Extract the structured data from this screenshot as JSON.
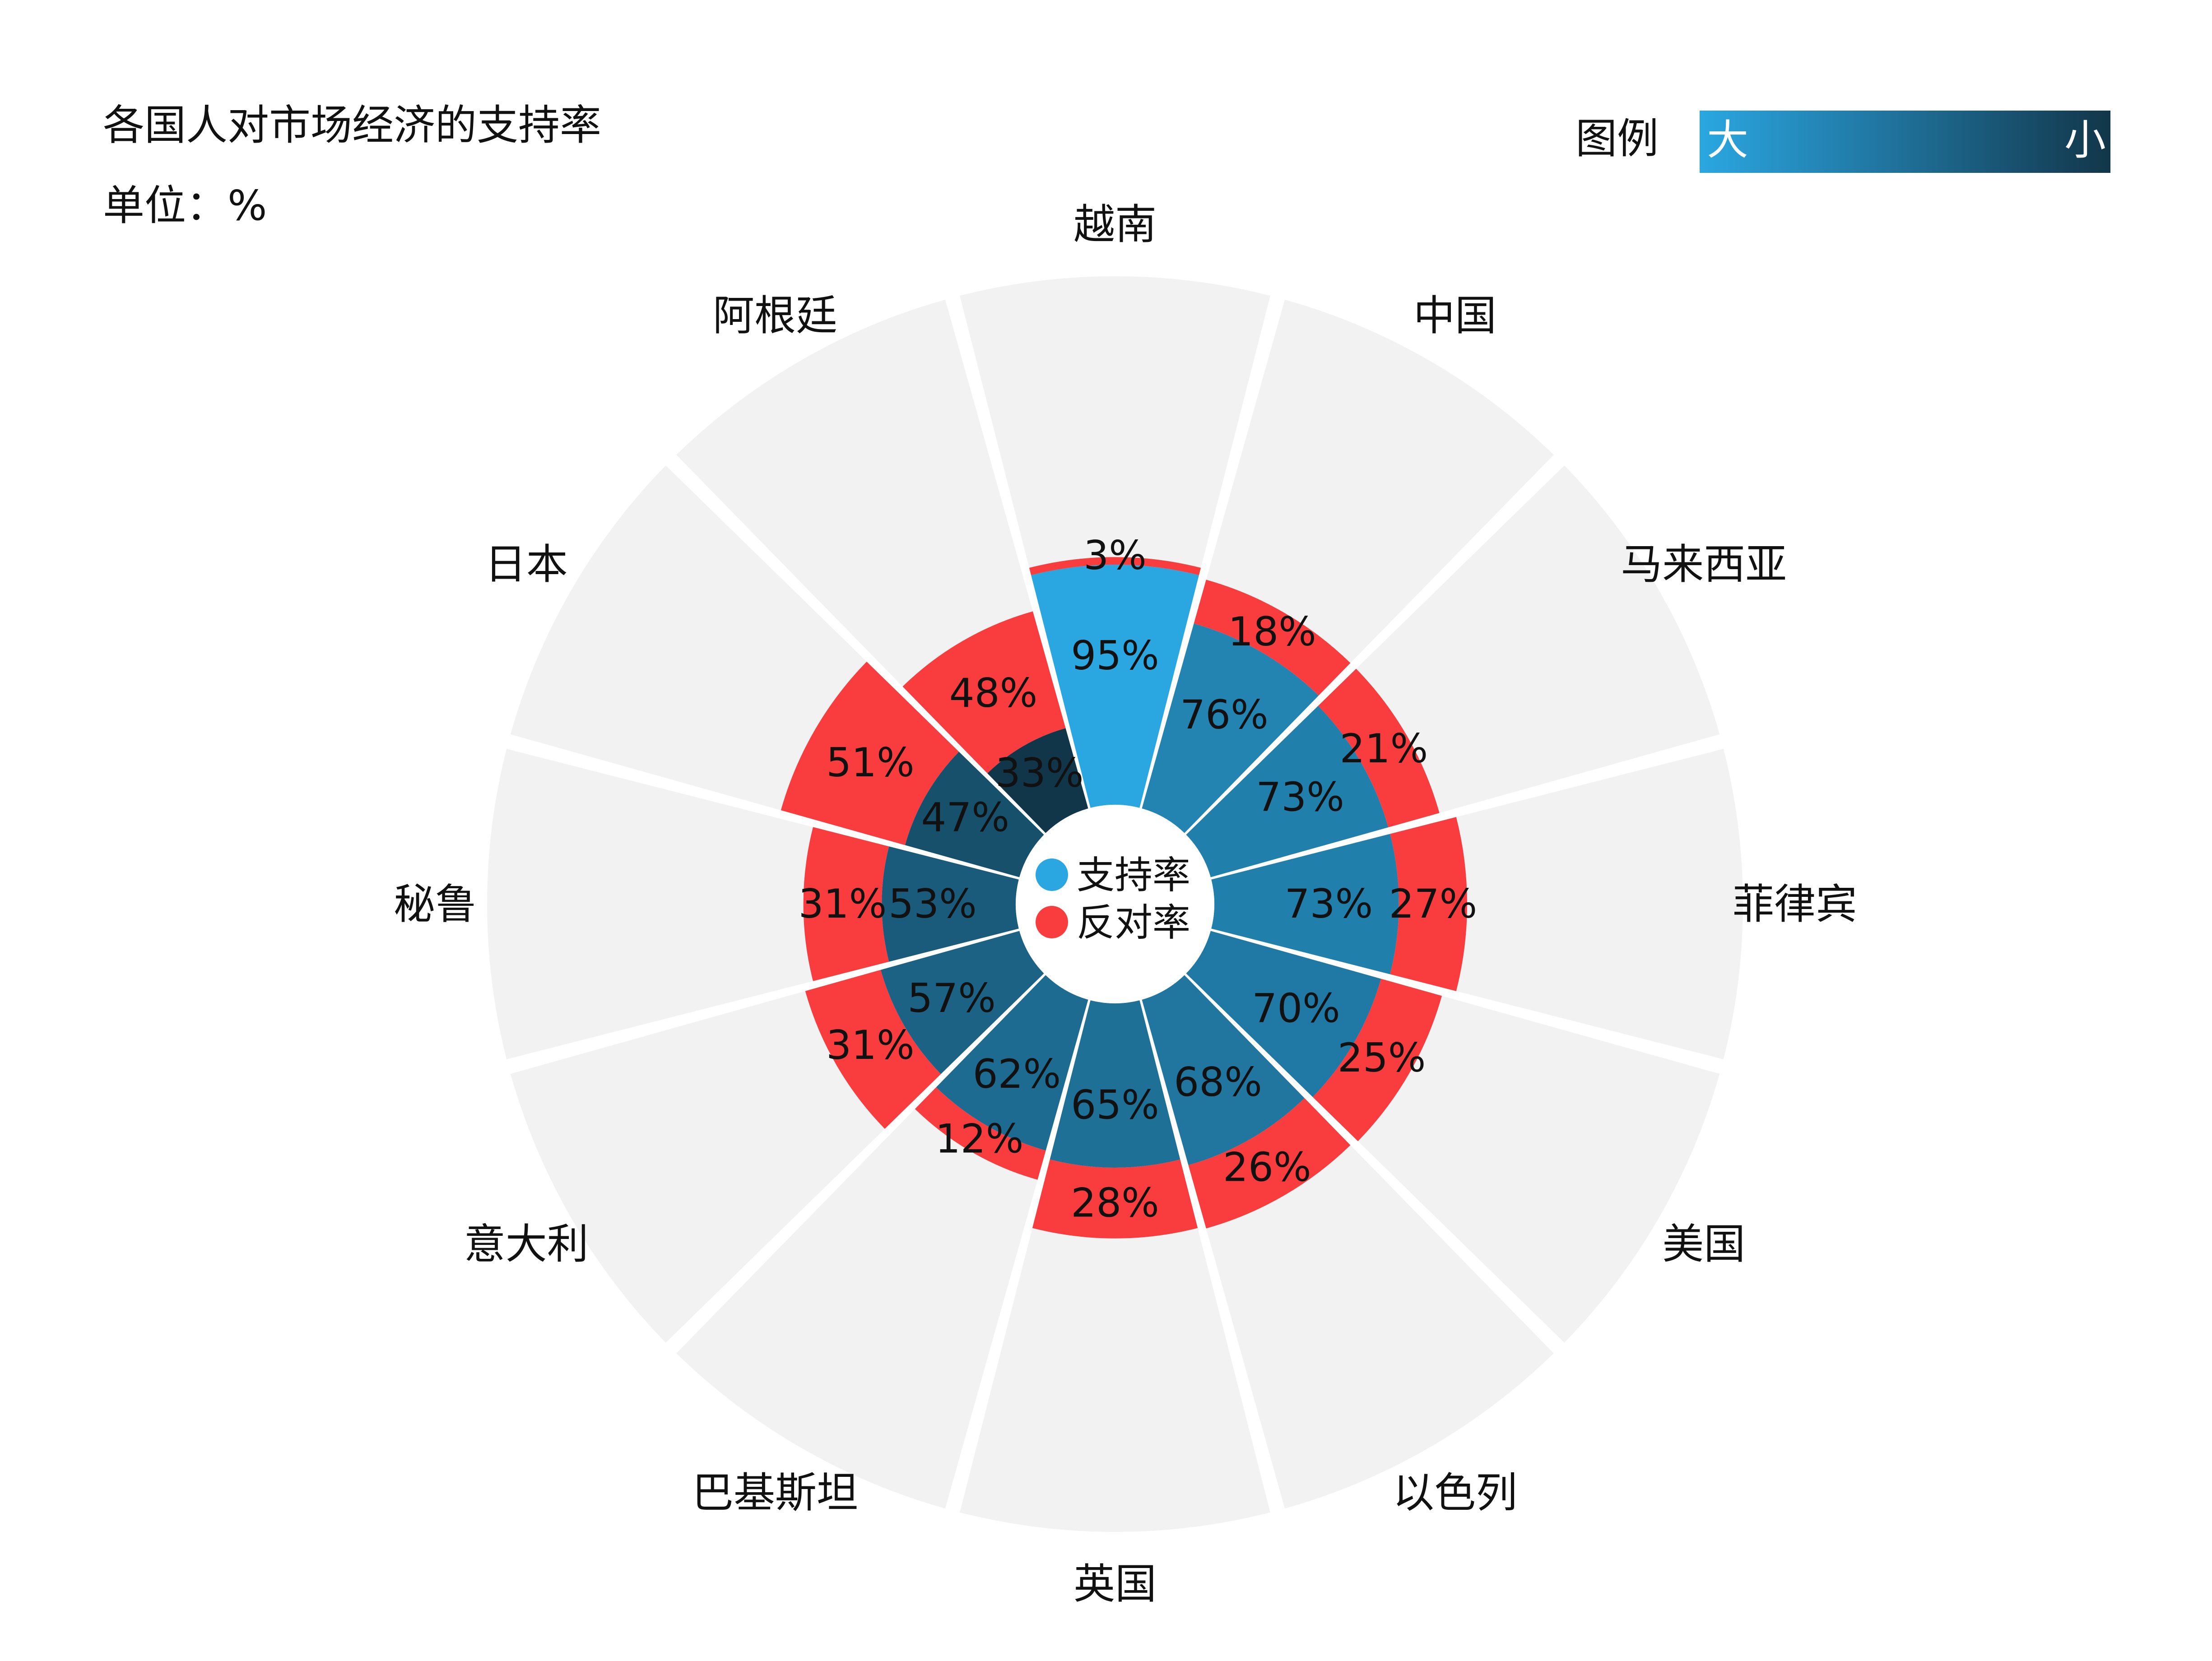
{
  "title": "各国人对市场经济的支持率",
  "unit": "单位：%",
  "legend": {
    "label": "图例",
    "gradient_start_label": "大",
    "gradient_end_label": "小",
    "gradient_colors": [
      "#2aa7e1",
      "#123649"
    ]
  },
  "center_legend": {
    "support_label": "支持率",
    "oppose_label": "反对率"
  },
  "colors": {
    "oppose": "#f93c3e",
    "background_band": "#f2f2f2",
    "support_high": "#2aa7e1",
    "support_low": "#123649"
  },
  "chart_data": {
    "type": "polar-stacked-bar",
    "title": "各国人对市场经济的支持率",
    "unit": "%",
    "series": [
      {
        "name": "支持率",
        "values": [
          95,
          76,
          73,
          73,
          70,
          68,
          65,
          62,
          57,
          53,
          47,
          33
        ]
      },
      {
        "name": "反对率",
        "values": [
          3,
          18,
          21,
          27,
          25,
          26,
          28,
          12,
          31,
          31,
          51,
          48
        ]
      }
    ],
    "categories": [
      "越南",
      "中国",
      "马来西亚",
      "菲律宾",
      "美国",
      "以色列",
      "英国",
      "巴基斯坦",
      "意大利",
      "秘鲁",
      "日本",
      "阿根廷"
    ]
  }
}
